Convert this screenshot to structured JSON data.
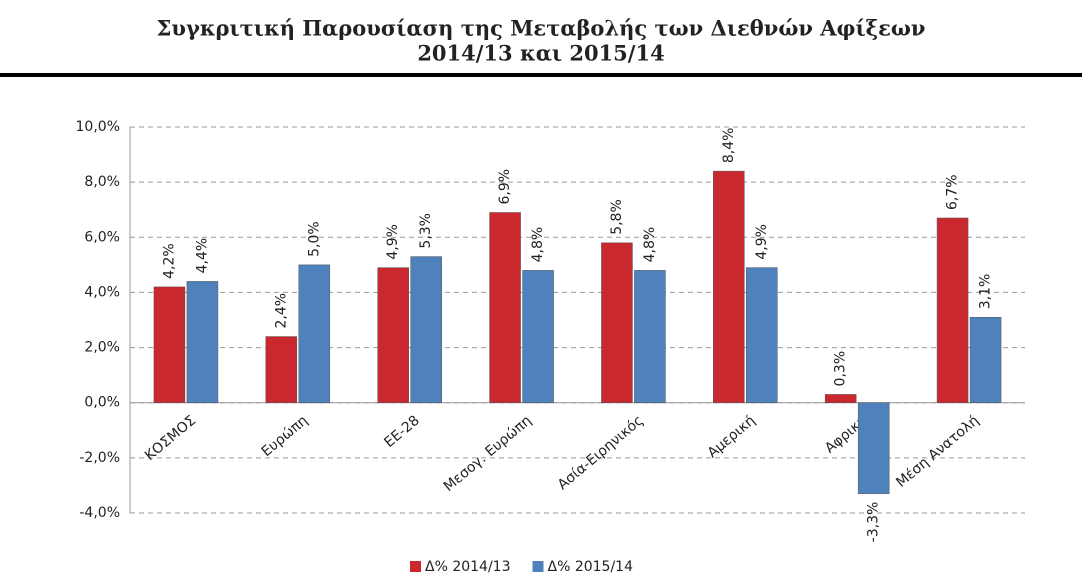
{
  "chart_data": {
    "type": "bar",
    "title": [
      "Συγκριτική Παρουσίαση της Μεταβολής των Διεθνών Αφίξεων",
      "2014/13 και 2015/14"
    ],
    "categories": [
      "ΚΟΣΜΟΣ",
      "Ευρώπη",
      "ΕΕ-28",
      "Μεσογ. Ευρώπη",
      "Ασία-Ειρηνικός",
      "Αμερική",
      "Αφρική",
      "Μέση Ανατολή"
    ],
    "series": [
      {
        "name": "Δ% 2014/13",
        "color": "#c8282e",
        "values": [
          4.2,
          2.4,
          4.9,
          6.9,
          5.8,
          8.4,
          0.3,
          6.7
        ],
        "value_labels": [
          "4,2%",
          "2,4%",
          "4,9%",
          "6,9%",
          "5,8%",
          "8,4%",
          "0,3%",
          "6,7%"
        ]
      },
      {
        "name": "Δ% 2015/14",
        "color": "#4f81bd",
        "values": [
          4.4,
          5.0,
          5.3,
          4.8,
          4.8,
          4.9,
          -3.3,
          3.1
        ],
        "value_labels": [
          "4,4%",
          "5,0%",
          "5,3%",
          "4,8%",
          "4,8%",
          "4,9%",
          "-3,3%",
          "3,1%"
        ]
      }
    ],
    "ylim": [
      -4,
      10
    ],
    "yticks": [
      {
        "value": -4,
        "label": "-4,0%"
      },
      {
        "value": -2,
        "label": "-2,0%"
      },
      {
        "value": 0,
        "label": "0,0%"
      },
      {
        "value": 2,
        "label": "2,0%"
      },
      {
        "value": 4,
        "label": "4,0%"
      },
      {
        "value": 6,
        "label": "6,0%"
      },
      {
        "value": 8,
        "label": "8,0%"
      },
      {
        "value": 10,
        "label": "10,0%"
      }
    ],
    "grid": true,
    "legend": "bottom"
  }
}
